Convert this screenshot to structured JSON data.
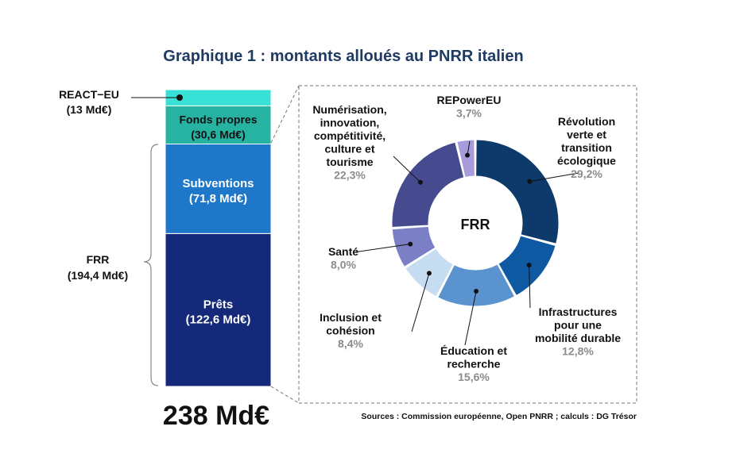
{
  "chart_data": [
    {
      "type": "bar",
      "title": "Graphique 1 : montants alloués au PNRR italien",
      "total_label": "238 Md€",
      "stack": [
        {
          "name": "Prêts",
          "label": "(122,6 Md€)",
          "value": 122.6,
          "color": "#15297a"
        },
        {
          "name": "Subventions",
          "label": "(71,8 Md€)",
          "value": 71.8,
          "color": "#1f77c9"
        },
        {
          "name": "Fonds propres",
          "label": "(30,6 Md€)",
          "value": 30.6,
          "color": "#27b3a2"
        },
        {
          "name": "",
          "label": "",
          "value": 13,
          "color": "#38e0d6"
        }
      ],
      "annotations": {
        "react_name": "REACT−EU",
        "react_value": "(13 Md€)",
        "frr_name": "FRR",
        "frr_value": "(194,4 Md€)"
      }
    },
    {
      "type": "pie",
      "center_label": "FRR",
      "slices": [
        {
          "name": "Révolution verte et transition écologique",
          "lines": [
            "Révolution",
            "verte et",
            "transition",
            "écologique"
          ],
          "pct_label": "29,2%",
          "value": 29.2,
          "color": "#0d3a6b"
        },
        {
          "name": "Infrastructures pour une mobilité durable",
          "lines": [
            "Infrastructures",
            "pour une",
            "mobilité durable"
          ],
          "pct_label": "12,8%",
          "value": 12.8,
          "color": "#0f59a3"
        },
        {
          "name": "Éducation et recherche",
          "lines": [
            "Éducation et",
            "recherche"
          ],
          "pct_label": "15,6%",
          "value": 15.6,
          "color": "#5b93cf"
        },
        {
          "name": "Inclusion et cohésion",
          "lines": [
            "Inclusion et",
            "cohésion"
          ],
          "pct_label": "8,4%",
          "value": 8.4,
          "color": "#c6dcf1"
        },
        {
          "name": "Santé",
          "lines": [
            "Santé"
          ],
          "pct_label": "8,0%",
          "value": 8.0,
          "color": "#7b7fc6"
        },
        {
          "name": "Numérisation, innovation, compétitivité, culture et tourisme",
          "lines": [
            "Numérisation,",
            "innovation,",
            "compétitivité,",
            "culture et",
            "tourisme"
          ],
          "pct_label": "22,3%",
          "value": 22.3,
          "color": "#454b8e"
        },
        {
          "name": "REPowerEU",
          "lines": [
            "REPowerEU"
          ],
          "pct_label": "3,7%",
          "value": 3.7,
          "color": "#a89bdc"
        }
      ]
    }
  ],
  "source": "Sources : Commission européenne, Open PNRR ; calculs : DG Trésor"
}
